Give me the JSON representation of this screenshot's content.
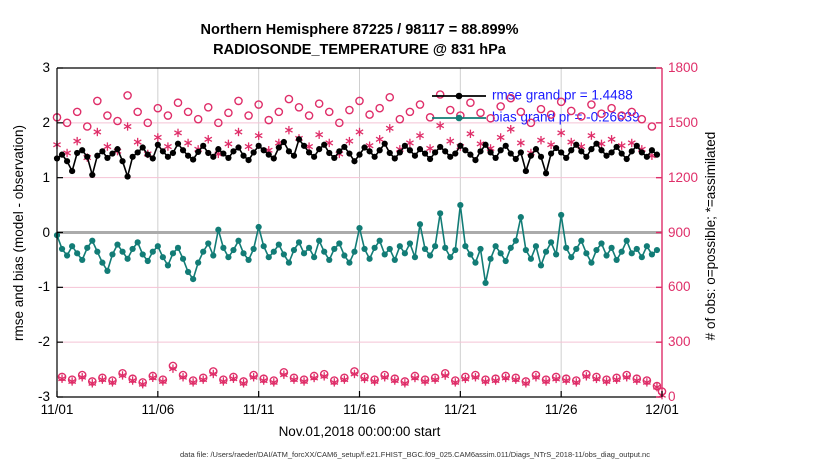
{
  "title": {
    "line1": "Northern Hemisphere 87225 / 98117 = 88.899%",
    "line2": "RADIOSONDE_TEMPERATURE @ 831 hPa"
  },
  "footer": "data file: /Users/raeder/DAI/ATM_forcXX/CAM6_setup/f.e21.FHIST_BGC.f09_025.CAM6assim.011/Diags_NTrS_2018-11/obs_diag_output.nc",
  "colors": {
    "rmse": "#000000",
    "bias": "#127c76",
    "obs_pink": "#df2e69",
    "legend_text": "#1a1aff",
    "grid_vertical": "#cfcfcf",
    "grid_horizontal": "#f4c3d5",
    "zero_line": "#ababab",
    "spine": "#000000"
  },
  "chart_data": {
    "type": "line",
    "title": "Northern Hemisphere 87225 / 98117 = 88.899%",
    "subtitle": "RADIOSONDE_TEMPERATURE @ 831 hPa",
    "xlabel": "Nov.01,2018 00:00:00 start",
    "x_tick_labels": [
      "11/01",
      "11/06",
      "11/11",
      "11/16",
      "11/21",
      "11/26",
      "12/01"
    ],
    "x_tick_days": [
      0,
      5,
      10,
      15,
      20,
      25,
      30
    ],
    "n_bins": 120,
    "bins_per_day": 4,
    "left_axis": {
      "label": "rmse and bias (model - observation)",
      "min": -3,
      "max": 3,
      "ticks": [
        3,
        2,
        1,
        0,
        -1,
        -2,
        -3
      ]
    },
    "right_axis": {
      "label": "# of obs: o=possible; *=assimilated",
      "min": 0,
      "max": 1800,
      "ticks": [
        1800,
        1500,
        1200,
        900,
        600,
        300,
        0
      ]
    },
    "legend": [
      {
        "label": "rmse grand pr = 1.4488",
        "series": "rmse"
      },
      {
        "label": "bias grand pr = -0.26639",
        "series": "bias"
      }
    ],
    "grand_stats": {
      "rmse": 1.4488,
      "bias": -0.26639,
      "n_assimilated": 87225,
      "n_possible": 98117,
      "pct": "88.899%"
    },
    "series": {
      "rmse": {
        "axis": "left",
        "marker": "filled-circle",
        "values": [
          1.35,
          1.42,
          1.3,
          1.12,
          1.45,
          1.5,
          1.38,
          1.05,
          1.4,
          1.48,
          1.36,
          1.44,
          1.52,
          1.3,
          1.02,
          1.38,
          1.46,
          1.55,
          1.42,
          1.35,
          1.6,
          1.48,
          1.38,
          1.45,
          1.62,
          1.5,
          1.4,
          1.33,
          1.47,
          1.58,
          1.45,
          1.38,
          1.52,
          1.44,
          1.36,
          1.48,
          1.55,
          1.4,
          1.32,
          1.46,
          1.58,
          1.5,
          1.42,
          1.35,
          1.55,
          1.65,
          1.48,
          1.4,
          1.7,
          1.58,
          1.46,
          1.38,
          1.52,
          1.6,
          1.45,
          1.36,
          1.48,
          1.56,
          1.44,
          1.3,
          1.42,
          1.55,
          1.48,
          1.38,
          1.5,
          1.62,
          1.45,
          1.35,
          1.46,
          1.58,
          1.5,
          1.4,
          1.52,
          1.44,
          1.34,
          1.46,
          1.56,
          1.48,
          1.38,
          1.44,
          1.58,
          1.5,
          1.42,
          1.32,
          1.48,
          1.6,
          1.46,
          1.36,
          1.5,
          1.58,
          1.44,
          1.34,
          1.46,
          1.12,
          1.4,
          1.52,
          1.38,
          1.08,
          1.44,
          1.54,
          1.46,
          1.36,
          1.5,
          1.6,
          1.48,
          1.38,
          1.52,
          1.62,
          1.5,
          1.4,
          1.46,
          1.56,
          1.44,
          1.34,
          1.48,
          1.58,
          1.46,
          1.38,
          1.5,
          1.42
        ]
      },
      "bias": {
        "axis": "left",
        "marker": "filled-circle",
        "values": [
          -0.05,
          -0.3,
          -0.42,
          -0.25,
          -0.38,
          -0.5,
          -0.28,
          -0.15,
          -0.35,
          -0.55,
          -0.7,
          -0.4,
          -0.22,
          -0.35,
          -0.48,
          -0.3,
          -0.18,
          -0.4,
          -0.52,
          -0.35,
          -0.25,
          -0.45,
          -0.6,
          -0.38,
          -0.28,
          -0.48,
          -0.72,
          -0.85,
          -0.55,
          -0.35,
          -0.2,
          -0.42,
          0.05,
          -0.28,
          -0.45,
          -0.32,
          -0.15,
          -0.38,
          -0.5,
          -0.3,
          0.1,
          -0.25,
          -0.45,
          -0.35,
          -0.22,
          -0.4,
          -0.55,
          -0.32,
          -0.18,
          -0.38,
          -0.28,
          -0.45,
          -0.15,
          -0.35,
          -0.5,
          -0.3,
          -0.2,
          -0.42,
          -0.55,
          -0.35,
          0.08,
          -0.3,
          -0.48,
          -0.28,
          -0.15,
          -0.4,
          -0.3,
          -0.5,
          -0.25,
          -0.38,
          -0.2,
          -0.45,
          0.15,
          -0.3,
          -0.42,
          -0.25,
          0.35,
          -0.28,
          -0.45,
          -0.32,
          0.5,
          -0.25,
          -0.4,
          -0.55,
          -0.3,
          -0.92,
          -0.48,
          -0.25,
          -0.38,
          -0.52,
          -0.28,
          -0.15,
          0.28,
          -0.32,
          -0.48,
          -0.25,
          -0.6,
          -0.35,
          -0.18,
          -0.4,
          0.32,
          -0.28,
          -0.45,
          -0.3,
          -0.15,
          -0.38,
          -0.55,
          -0.32,
          -0.2,
          -0.42,
          -0.28,
          -0.5,
          -0.35,
          -0.15,
          -0.38,
          -0.3,
          -0.45,
          -0.25,
          -0.4,
          -0.32
        ]
      },
      "possible": {
        "axis": "right",
        "marker": "open-circle",
        "values": [
          1530,
          110,
          1500,
          95,
          1560,
          120,
          1480,
          85,
          1620,
          105,
          1540,
          90,
          1510,
          130,
          1650,
          100,
          1560,
          80,
          1500,
          115,
          1580,
          95,
          1540,
          170,
          1610,
          120,
          1560,
          90,
          1520,
          105,
          1585,
          140,
          1500,
          95,
          1555,
          110,
          1620,
          85,
          1540,
          120,
          1600,
          100,
          1515,
          90,
          1560,
          135,
          1630,
          105,
          1585,
          95,
          1540,
          115,
          1605,
          125,
          1560,
          90,
          1500,
          105,
          1570,
          140,
          1620,
          110,
          1545,
          95,
          1580,
          120,
          1640,
          100,
          1520,
          85,
          1560,
          115,
          1600,
          95,
          1530,
          105,
          1655,
          130,
          1570,
          90,
          1540,
          110,
          1610,
          120,
          1555,
          95,
          1525,
          100,
          1590,
          115,
          1635,
          105,
          1560,
          85,
          1500,
          120,
          1575,
          95,
          1545,
          110,
          1615,
          100,
          1565,
          90,
          1535,
          125,
          1600,
          110,
          1550,
          95,
          1580,
          105,
          1540,
          120,
          1560,
          100,
          1520,
          90,
          1480,
          60,
          30
        ]
      },
      "assimilated": {
        "axis": "right",
        "marker": "asterisk",
        "values": [
          1380,
          100,
          1335,
          85,
          1400,
          108,
          1310,
          75,
          1450,
          95,
          1370,
          80,
          1345,
          118,
          1480,
          90,
          1395,
          70,
          1330,
          105,
          1420,
          85,
          1370,
          155,
          1445,
          108,
          1390,
          80,
          1355,
          95,
          1410,
          126,
          1330,
          85,
          1385,
          100,
          1450,
          75,
          1370,
          108,
          1430,
          90,
          1350,
          80,
          1390,
          122,
          1460,
          95,
          1415,
          85,
          1370,
          104,
          1435,
          113,
          1390,
          80,
          1330,
          95,
          1400,
          126,
          1450,
          99,
          1375,
          85,
          1410,
          108,
          1470,
          90,
          1355,
          75,
          1390,
          104,
          1430,
          85,
          1360,
          95,
          1485,
          117,
          1400,
          80,
          1370,
          99,
          1440,
          108,
          1385,
          85,
          1360,
          90,
          1420,
          104,
          1465,
          95,
          1390,
          75,
          1335,
          108,
          1405,
          85,
          1380,
          99,
          1445,
          90,
          1395,
          80,
          1370,
          113,
          1430,
          99,
          1385,
          85,
          1410,
          95,
          1375,
          108,
          1390,
          90,
          1355,
          80,
          1320,
          54,
          10
        ]
      }
    }
  }
}
